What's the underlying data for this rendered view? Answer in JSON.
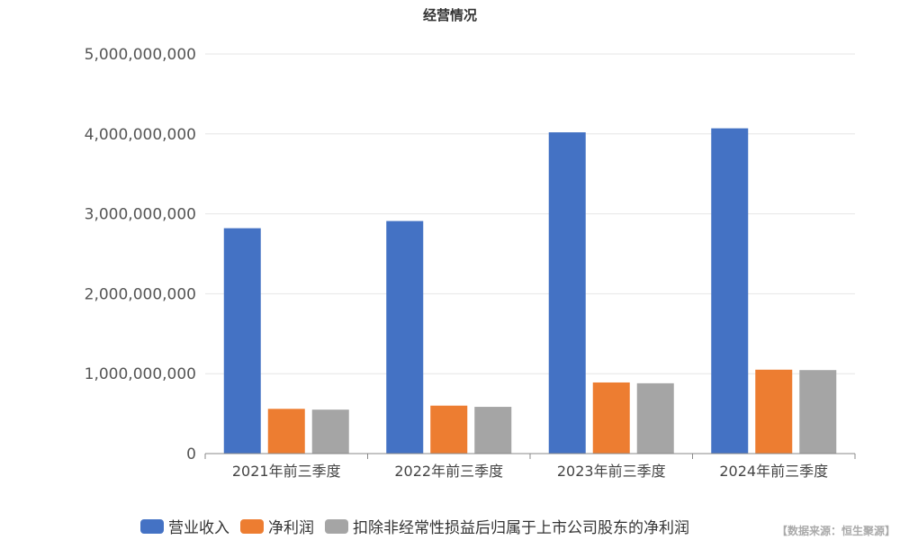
{
  "chart_data": {
    "type": "bar",
    "title": "经营情况",
    "categories": [
      "2021年前三季度",
      "2022年前三季度",
      "2023年前三季度",
      "2024年前三季度"
    ],
    "series": [
      {
        "name": "营业收入",
        "color": "#4472c4",
        "values": [
          2820000000,
          2910000000,
          4020000000,
          4070000000
        ]
      },
      {
        "name": "净利润",
        "color": "#ed7d31",
        "values": [
          560000000,
          600000000,
          890000000,
          1050000000
        ]
      },
      {
        "name": "扣除非经常性损益后归属于上市公司股东的净利润",
        "color": "#a5a5a5",
        "values": [
          550000000,
          585000000,
          880000000,
          1045000000
        ]
      }
    ],
    "ylim": [
      0,
      5000000000
    ],
    "yticks": [
      "0",
      "1,000,000,000",
      "2,000,000,000",
      "3,000,000,000",
      "4,000,000,000",
      "5,000,000,000"
    ],
    "ytick_values": [
      0,
      1000000000,
      2000000000,
      3000000000,
      4000000000,
      5000000000
    ],
    "grid": true,
    "legend_position": "bottom"
  },
  "source_note": "【数据来源：恒生聚源】"
}
